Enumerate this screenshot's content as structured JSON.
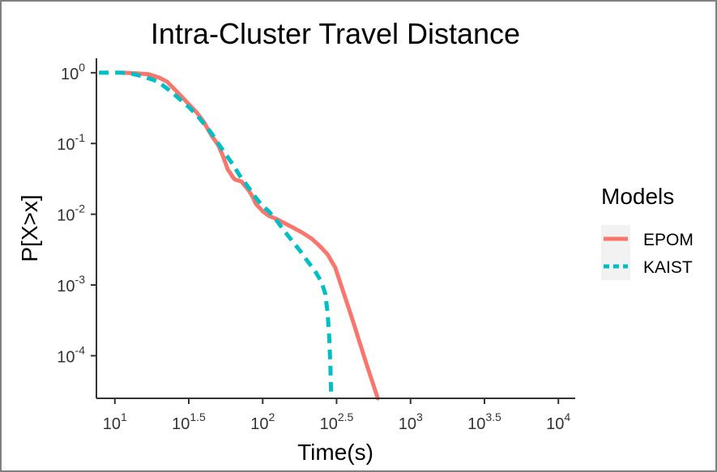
{
  "chart_data": {
    "type": "line",
    "title": "Intra-Cluster Travel Distance",
    "xlabel": "Time(s)",
    "ylabel": "P[X>x]",
    "x_scale": "log10",
    "y_scale": "log10",
    "xlim": [
      7.5,
      13000
    ],
    "ylim": [
      2.5e-05,
      1.6
    ],
    "x_ticks": [
      {
        "value": 10,
        "base": "10",
        "exp": "1"
      },
      {
        "value": 31.6,
        "base": "10",
        "exp": "1.5"
      },
      {
        "value": 100,
        "base": "10",
        "exp": "2"
      },
      {
        "value": 316,
        "base": "10",
        "exp": "2.5"
      },
      {
        "value": 1000,
        "base": "10",
        "exp": "3"
      },
      {
        "value": 3162,
        "base": "10",
        "exp": "3.5"
      },
      {
        "value": 10000,
        "base": "10",
        "exp": "4"
      }
    ],
    "y_ticks": [
      {
        "value": 1,
        "base": "10",
        "exp": "0"
      },
      {
        "value": 0.1,
        "base": "10",
        "exp": "-1"
      },
      {
        "value": 0.01,
        "base": "10",
        "exp": "-2"
      },
      {
        "value": 0.001,
        "base": "10",
        "exp": "-3"
      },
      {
        "value": 0.0001,
        "base": "10",
        "exp": "-4"
      }
    ],
    "grid": false,
    "legend": {
      "title": "Models",
      "position": "right"
    },
    "series": [
      {
        "name": "EPOM",
        "color": "#F8766D",
        "line_style": "solid",
        "x": [
          11.2,
          14,
          17,
          20,
          22.5,
          25,
          28,
          32,
          36,
          40,
          45,
          50,
          53,
          56,
          58,
          60,
          61.5,
          63,
          65,
          68,
          72,
          76,
          80,
          85,
          90,
          100,
          110,
          125,
          140,
          160,
          185,
          215,
          245,
          275,
          310,
          400,
          500,
          600
        ],
        "y": [
          1.0,
          0.98,
          0.95,
          0.85,
          0.75,
          0.6,
          0.47,
          0.35,
          0.27,
          0.2,
          0.13,
          0.095,
          0.072,
          0.053,
          0.043,
          0.039,
          0.036,
          0.033,
          0.031,
          0.03,
          0.029,
          0.025,
          0.022,
          0.018,
          0.014,
          0.011,
          0.0095,
          0.0085,
          0.0075,
          0.0065,
          0.0055,
          0.0045,
          0.0035,
          0.0027,
          0.00175,
          0.00035,
          8e-05,
          2.5e-05
        ]
      },
      {
        "name": "KAIST",
        "color": "#00BFC4",
        "line_style": "dashed",
        "x": [
          7.8,
          9,
          11,
          13,
          15,
          18,
          20,
          22.5,
          25,
          28,
          32,
          36,
          40,
          45,
          50,
          56,
          63,
          70,
          80,
          90,
          100,
          110,
          125,
          140,
          160,
          180,
          200,
          225,
          250,
          265,
          275,
          282,
          287,
          291
        ],
        "y": [
          1.0,
          1.0,
          1.0,
          0.97,
          0.9,
          0.8,
          0.72,
          0.6,
          0.5,
          0.41,
          0.32,
          0.25,
          0.19,
          0.14,
          0.1,
          0.071,
          0.05,
          0.035,
          0.024,
          0.017,
          0.013,
          0.011,
          0.008,
          0.0058,
          0.0041,
          0.003,
          0.0022,
          0.0016,
          0.0011,
          0.00075,
          0.0004,
          0.00018,
          7e-05,
          2.5e-05
        ]
      }
    ]
  }
}
